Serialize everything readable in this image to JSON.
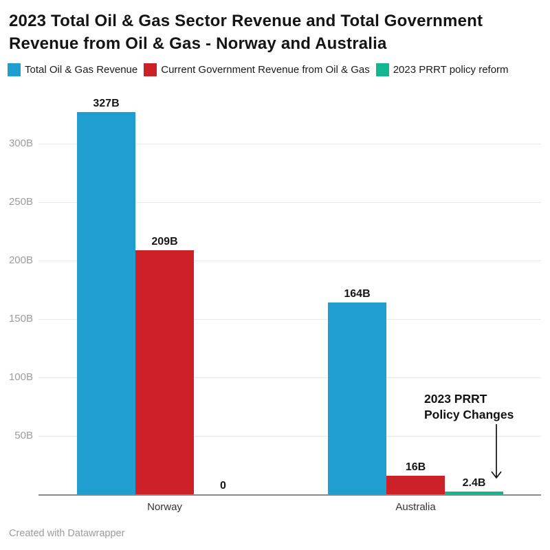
{
  "header": {
    "title_line1": "2023 Total Oil & Gas Sector Revenue and Total Government",
    "title_line2": "Revenue from Oil & Gas - Norway and Australia"
  },
  "chart_data": {
    "type": "bar",
    "title": "2023 Total Oil & Gas Sector Revenue and Total Government Revenue from Oil & Gas - Norway and Australia",
    "categories": [
      "Norway",
      "Australia"
    ],
    "series": [
      {
        "key": "total-oil-gas-revenue",
        "name": "Total Oil & Gas Revenue",
        "color": "#1e9fd0",
        "values": [
          327,
          164
        ],
        "value_labels": [
          "327B",
          "164B"
        ]
      },
      {
        "key": "current-government-revenue",
        "name": "Current Government Revenue from Oil & Gas",
        "color": "#cb2127",
        "values": [
          209,
          16
        ],
        "value_labels": [
          "209B",
          "16B"
        ]
      },
      {
        "key": "prrt-policy-reform",
        "name": "2023 PRRT policy reform",
        "color": "#14b690",
        "values": [
          0,
          2.4
        ],
        "value_labels": [
          "0",
          "2.4B"
        ]
      }
    ],
    "unit": "B",
    "xlabel": "",
    "ylabel": "",
    "ylim": [
      0,
      340
    ],
    "y_ticks": [
      {
        "value": 50,
        "label": "50B"
      },
      {
        "value": 100,
        "label": "100B"
      },
      {
        "value": 150,
        "label": "150B"
      },
      {
        "value": 200,
        "label": "200B"
      },
      {
        "value": 250,
        "label": "250B"
      },
      {
        "value": 300,
        "label": "300B"
      }
    ],
    "grid": true,
    "legend_position": "top",
    "annotation": {
      "line1": "2023 PRRT",
      "line2": "Policy Changes",
      "points_to": "Australia 2023 PRRT policy reform bar"
    }
  },
  "footer": {
    "credit": "Created with Datawrapper"
  },
  "colors": {
    "axis_line": "#8a8a8a",
    "gridline": "#e9e9e9",
    "tick_label": "#9c9c9c",
    "category_label": "#333333",
    "value_label": "#161616",
    "title": "#141414",
    "footer": "#9c9c9c",
    "annotation": "#111111"
  }
}
